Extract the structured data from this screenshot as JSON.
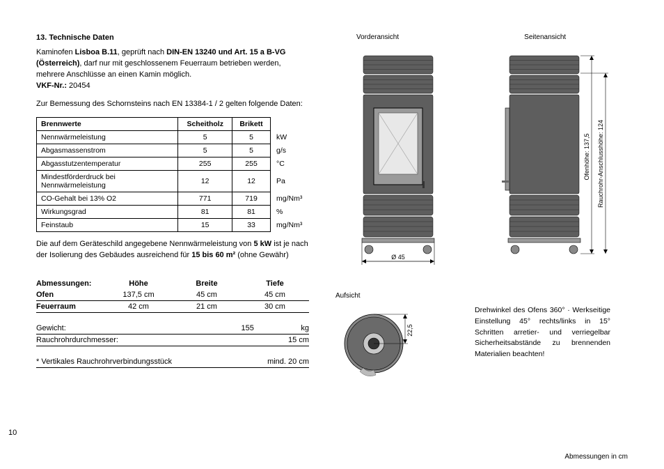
{
  "heading": "13.   Technische Daten",
  "intro": {
    "pre": "Kaminofen ",
    "model": "Lisboa B.11",
    "mid": ", geprüft nach ",
    "norm": "DIN-EN 13240 und Art. 15 a B-VG (Österreich)",
    "rest": ", darf nur mit geschlossenem Feuerraum betrieben werden, mehrere Anschlüsse an einen Kamin möglich.",
    "vkf_label": "VKF-Nr.:",
    "vkf_value": " 20454"
  },
  "chimney_line": "Zur Bemessung des Schornsteins nach EN 13384-1 / 2  gelten folgende Daten:",
  "table1": {
    "headers": [
      "Brennwerte",
      "Scheitholz",
      "Brikett",
      ""
    ],
    "rows": [
      [
        "Nennwärmeleistung",
        "5",
        "5",
        "kW"
      ],
      [
        "Abgasmassenstrom",
        "5",
        "5",
        "g/s"
      ],
      [
        "Abgasstutzentemperatur",
        "255",
        "255",
        "°C"
      ],
      [
        "Mindestförderdruck bei Nennwärmeleistung",
        "12",
        "12",
        "Pa"
      ],
      [
        "CO-Gehalt bei 13% O2",
        "771",
        "719",
        "mg/Nm³"
      ],
      [
        "Wirkungsgrad",
        "81",
        "81",
        "%"
      ],
      [
        "Feinstaub",
        "15",
        "33",
        "mg/Nm³"
      ]
    ]
  },
  "power_text": {
    "line1a": "Die auf dem Geräteschild angegebene Nennwärmeleistung von ",
    "line1b": "5 kW",
    "line1c": " ist je nach der Isolierung des Gebäudes ausreichend für ",
    "line1d": "15 bis 60 m²",
    "line1e": " (ohne Gewähr)"
  },
  "dims": {
    "head": [
      "Abmessungen:",
      "Höhe",
      "Breite",
      "Tiefe"
    ],
    "ofen": [
      "Ofen",
      "137,5 cm",
      "45 cm",
      "45 cm"
    ],
    "feuer": [
      "Feuerraum",
      "42 cm",
      "21 cm",
      "30 cm"
    ],
    "gewicht_label": "Gewicht:",
    "gewicht_val": "155",
    "gewicht_unit": "kg",
    "rohr_label": "Rauchrohrdurchmesser:",
    "rohr_val": "15 cm",
    "vert_label": "* Vertikales Rauchrohrverbindungsstück",
    "vert_val": "mind. 20 cm"
  },
  "views": {
    "front": "Vorderansicht",
    "side": "Seitenansicht",
    "top": "Aufsicht"
  },
  "drawing_labels": {
    "ofenhoehe": "Ofenhöhe: 137,5",
    "rauchrohr": "Rauchrohr-Anschlusshöhe: 124",
    "diameter": "Ø 45",
    "top_dim": "22,5"
  },
  "rotation_text": "Drehwinkel des Ofens 360° · Werkseitige Einstellung 45° rechts/links in 15° Schritten arretier- und verriegelbar  Sicherheitsabstän­de zu brennenden Materialien beachten!",
  "dim_note": "Abmessungen in cm",
  "page_number": "10",
  "colors": {
    "body_dark": "#5e5e5e",
    "body_mid": "#9a9a9a",
    "glass": "#e8e8e8",
    "line": "#000000"
  }
}
